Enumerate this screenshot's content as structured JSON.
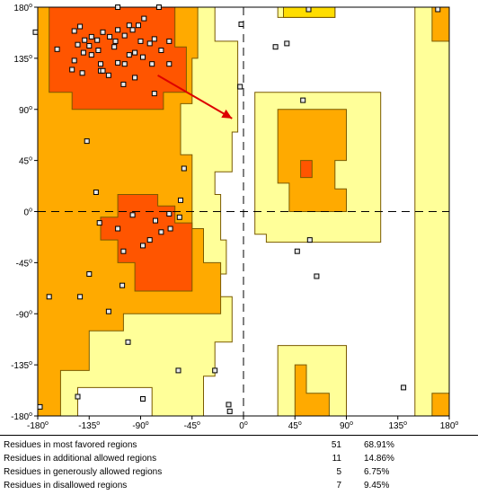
{
  "chart_data": {
    "type": "scatter",
    "plot_kind": "Ramachandran plot",
    "xlim": [
      -180,
      180
    ],
    "ylim": [
      -180,
      180
    ],
    "x_ticks": [
      {
        "value": -180,
        "label": "-180"
      },
      {
        "value": -135,
        "label": "-135"
      },
      {
        "value": -90,
        "label": "-90"
      },
      {
        "value": -45,
        "label": "-45"
      },
      {
        "value": 0,
        "label": "0"
      },
      {
        "value": 45,
        "label": "45"
      },
      {
        "value": 90,
        "label": "90"
      },
      {
        "value": 135,
        "label": "135"
      },
      {
        "value": 180,
        "label": "180"
      }
    ],
    "y_ticks": [
      {
        "value": 180,
        "label": "180"
      },
      {
        "value": 135,
        "label": "135"
      },
      {
        "value": 90,
        "label": "90"
      },
      {
        "value": 45,
        "label": "45"
      },
      {
        "value": 0,
        "label": "0"
      },
      {
        "value": -45,
        "label": "-45"
      },
      {
        "value": -90,
        "label": "-90"
      },
      {
        "value": -135,
        "label": "-135"
      },
      {
        "value": -180,
        "label": "-180"
      }
    ],
    "degree_symbol": "o",
    "colors": {
      "most_favored": "#ff5500",
      "additional_allowed": "#ffaa00",
      "generously_allowed": "#ffff99",
      "highlight": "#ffdd00",
      "border": "#7a5a00",
      "point_fill": "#e8e8e8",
      "point_stroke": "#000000",
      "arrow": "#dd0000",
      "reference_line": "#000000"
    },
    "regions": {
      "generously_allowed": [
        [
          [
            -180,
            180
          ],
          [
            -180,
            -180
          ],
          [
            -145,
            -180
          ],
          [
            -145,
            -155
          ],
          [
            -80,
            -155
          ],
          [
            -80,
            -180
          ],
          [
            -35,
            -180
          ],
          [
            -35,
            -145
          ],
          [
            -25,
            -145
          ],
          [
            -25,
            -115
          ],
          [
            -10,
            -115
          ],
          [
            -10,
            -75
          ],
          [
            -25,
            -75
          ],
          [
            -25,
            -55
          ],
          [
            -15,
            -55
          ],
          [
            -15,
            -25
          ],
          [
            -20,
            -25
          ],
          [
            -20,
            15
          ],
          [
            -25,
            15
          ],
          [
            -25,
            35
          ],
          [
            -10,
            35
          ],
          [
            -10,
            70
          ],
          [
            -5,
            70
          ],
          [
            -5,
            150
          ],
          [
            -25,
            150
          ],
          [
            -25,
            180
          ]
        ],
        [
          [
            10,
            105
          ],
          [
            10,
            -20
          ],
          [
            20,
            -20
          ],
          [
            20,
            -27
          ],
          [
            120,
            -27
          ],
          [
            120,
            105
          ]
        ],
        [
          [
            30,
            -118
          ],
          [
            30,
            -180
          ],
          [
            90,
            -180
          ],
          [
            90,
            -118
          ]
        ],
        [
          [
            150,
            180
          ],
          [
            150,
            -180
          ],
          [
            180,
            -180
          ],
          [
            180,
            180
          ]
        ],
        [
          [
            30,
            180
          ],
          [
            30,
            171
          ],
          [
            80,
            171
          ],
          [
            80,
            180
          ]
        ]
      ],
      "additional_allowed": [
        [
          [
            -180,
            180
          ],
          [
            -180,
            -180
          ],
          [
            -160,
            -180
          ],
          [
            -160,
            -140
          ],
          [
            -135,
            -140
          ],
          [
            -135,
            -105
          ],
          [
            -105,
            -105
          ],
          [
            -105,
            -90
          ],
          [
            -20,
            -90
          ],
          [
            -20,
            -45
          ],
          [
            -35,
            -45
          ],
          [
            -35,
            -15
          ],
          [
            -45,
            -15
          ],
          [
            -45,
            50
          ],
          [
            -55,
            50
          ],
          [
            -55,
            95
          ],
          [
            -45,
            95
          ],
          [
            -45,
            135
          ],
          [
            -40,
            135
          ],
          [
            -40,
            180
          ]
        ],
        [
          [
            30,
            90
          ],
          [
            30,
            25
          ],
          [
            40,
            25
          ],
          [
            40,
            0
          ],
          [
            90,
            0
          ],
          [
            90,
            20
          ],
          [
            80,
            20
          ],
          [
            80,
            45
          ],
          [
            90,
            45
          ],
          [
            90,
            90
          ]
        ],
        [
          [
            45,
            -135
          ],
          [
            45,
            -180
          ],
          [
            75,
            -180
          ],
          [
            75,
            -160
          ],
          [
            55,
            -160
          ],
          [
            55,
            -135
          ]
        ],
        [
          [
            165,
            180
          ],
          [
            165,
            150
          ],
          [
            180,
            150
          ],
          [
            180,
            180
          ]
        ],
        [
          [
            165,
            -160
          ],
          [
            165,
            -180
          ],
          [
            180,
            -180
          ],
          [
            180,
            -160
          ]
        ]
      ],
      "most_favored": [
        [
          [
            -170,
            180
          ],
          [
            -170,
            105
          ],
          [
            -150,
            105
          ],
          [
            -150,
            90
          ],
          [
            -70,
            90
          ],
          [
            -70,
            105
          ],
          [
            -50,
            105
          ],
          [
            -50,
            145
          ],
          [
            -60,
            145
          ],
          [
            -60,
            180
          ]
        ],
        [
          [
            -125,
            -25
          ],
          [
            -125,
            -5
          ],
          [
            -110,
            -5
          ],
          [
            -110,
            15
          ],
          [
            -75,
            15
          ],
          [
            -75,
            5
          ],
          [
            -60,
            5
          ],
          [
            -60,
            -10
          ],
          [
            -45,
            -10
          ],
          [
            -45,
            -70
          ],
          [
            -95,
            -70
          ],
          [
            -95,
            -45
          ],
          [
            -110,
            -45
          ],
          [
            -110,
            -25
          ]
        ],
        [
          [
            50,
            45
          ],
          [
            50,
            30
          ],
          [
            60,
            30
          ],
          [
            60,
            45
          ]
        ]
      ],
      "highlight": [
        [
          [
            35,
            180
          ],
          [
            35,
            171
          ],
          [
            80,
            171
          ],
          [
            80,
            180
          ]
        ]
      ]
    },
    "reference_lines": {
      "x": 0,
      "y": 0,
      "style": "dashed"
    },
    "arrow": {
      "from": [
        -75,
        120
      ],
      "to": [
        -10,
        82
      ]
    },
    "points": [
      [
        -182,
        158
      ],
      [
        -163,
        143
      ],
      [
        -148,
        159
      ],
      [
        -143,
        163
      ],
      [
        -139,
        151
      ],
      [
        -133,
        154
      ],
      [
        -128,
        151
      ],
      [
        -123,
        158
      ],
      [
        -127,
        142
      ],
      [
        -125,
        130
      ],
      [
        -117,
        154
      ],
      [
        -112,
        150
      ],
      [
        -110,
        160
      ],
      [
        -104,
        155
      ],
      [
        -100,
        164
      ],
      [
        -97,
        160
      ],
      [
        -92,
        164
      ],
      [
        -135,
        146
      ],
      [
        -145,
        147
      ],
      [
        -140,
        140
      ],
      [
        -133,
        138
      ],
      [
        -148,
        133
      ],
      [
        -150,
        125
      ],
      [
        -141,
        122
      ],
      [
        -125,
        124
      ],
      [
        -118,
        120
      ],
      [
        -110,
        131
      ],
      [
        -104,
        130
      ],
      [
        -100,
        138
      ],
      [
        -95,
        140
      ],
      [
        -90,
        150
      ],
      [
        -82,
        148
      ],
      [
        -78,
        152
      ],
      [
        -88,
        136
      ],
      [
        -80,
        130
      ],
      [
        -72,
        142
      ],
      [
        -65,
        150
      ],
      [
        -105,
        112
      ],
      [
        -95,
        118
      ],
      [
        -78,
        104
      ],
      [
        -65,
        130
      ],
      [
        -87,
        170
      ],
      [
        -110,
        180
      ],
      [
        -123,
        124
      ],
      [
        -113,
        145
      ],
      [
        -74,
        180
      ],
      [
        -137,
        62
      ],
      [
        -129,
        17
      ],
      [
        -52,
        38
      ],
      [
        -97,
        -3
      ],
      [
        -65,
        -2
      ],
      [
        -56,
        -5
      ],
      [
        -77,
        -8
      ],
      [
        -110,
        -15
      ],
      [
        -126,
        -10
      ],
      [
        -64,
        -15
      ],
      [
        -72,
        -18
      ],
      [
        -82,
        -25
      ],
      [
        -105,
        -35
      ],
      [
        -88,
        -30
      ],
      [
        -135,
        -55
      ],
      [
        -143,
        -75
      ],
      [
        -106,
        -65
      ],
      [
        -118,
        -88
      ],
      [
        -170,
        -75
      ],
      [
        -57,
        -140
      ],
      [
        -25,
        -140
      ],
      [
        -88,
        -165
      ],
      [
        -101,
        -115
      ],
      [
        -145,
        -163
      ],
      [
        -178,
        -172
      ],
      [
        -13,
        -170
      ],
      [
        -12,
        -176
      ],
      [
        -2,
        165
      ],
      [
        -3,
        110
      ],
      [
        28,
        145
      ],
      [
        38,
        148
      ],
      [
        52,
        98
      ],
      [
        58,
        -25
      ],
      [
        47,
        -35
      ],
      [
        64,
        -57
      ],
      [
        140,
        -155
      ],
      [
        57,
        178
      ],
      [
        170,
        178
      ],
      [
        -55,
        10
      ]
    ]
  },
  "stats": {
    "rows": [
      {
        "label": "Residues in most favored regions",
        "count": "51",
        "percent": "68.91%"
      },
      {
        "label": "Residues in additional allowed regions",
        "count": "11",
        "percent": "14.86%"
      },
      {
        "label": "Residues in generously allowed regions",
        "count": "5",
        "percent": "6.75%"
      },
      {
        "label": "Residues in disallowed regions",
        "count": "7",
        "percent": "9.45%"
      }
    ]
  }
}
